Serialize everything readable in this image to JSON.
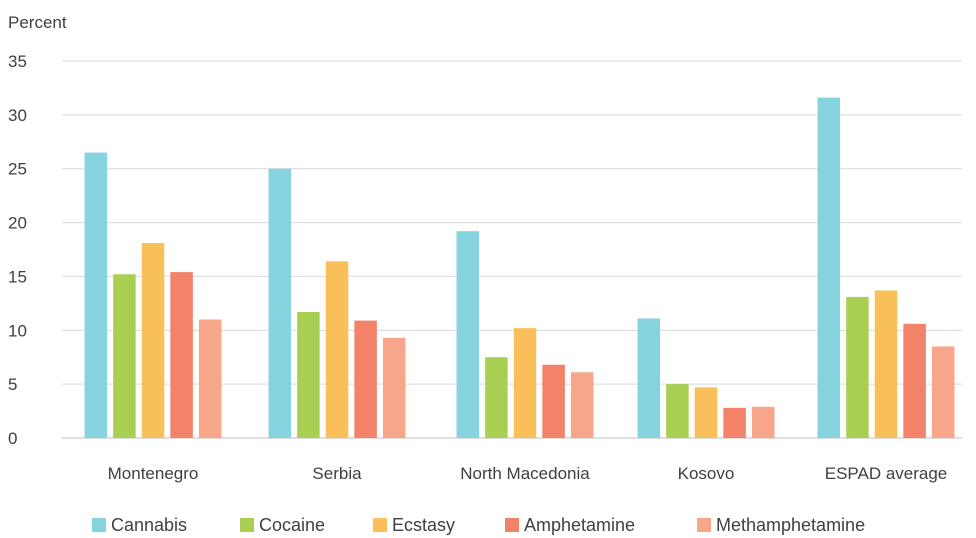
{
  "chart_data": {
    "type": "bar",
    "ylabel": "Percent",
    "ylim": [
      0,
      35
    ],
    "yticks": [
      0,
      5,
      10,
      15,
      20,
      25,
      30,
      35
    ],
    "grid": true,
    "legend_position": "bottom",
    "categories": [
      "Montenegro",
      "Serbia",
      "North Macedonia",
      "Kosovo",
      "ESPAD average"
    ],
    "series": [
      {
        "name": "Cannabis",
        "color": "#86D3E0",
        "values": [
          26.5,
          25.0,
          19.2,
          11.1,
          31.6
        ]
      },
      {
        "name": "Cocaine",
        "color": "#A9CF52",
        "values": [
          15.2,
          11.7,
          7.5,
          5.0,
          13.1
        ]
      },
      {
        "name": "Ecstasy",
        "color": "#F9C059",
        "values": [
          18.1,
          16.4,
          10.2,
          4.7,
          13.7
        ]
      },
      {
        "name": "Amphetamine",
        "color": "#F28268",
        "values": [
          15.4,
          10.9,
          6.8,
          2.8,
          10.6
        ]
      },
      {
        "name": "Methamphetamine",
        "color": "#F7A68A",
        "values": [
          11.0,
          9.3,
          6.1,
          2.9,
          8.5
        ]
      }
    ]
  }
}
